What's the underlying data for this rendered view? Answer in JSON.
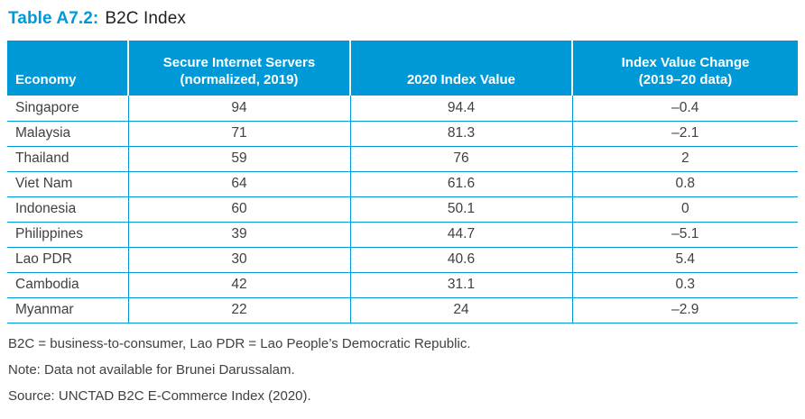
{
  "title": {
    "label": "Table A7.2:",
    "text": "B2C Index"
  },
  "colors": {
    "accent_cyan": "#0099d8",
    "header_text": "#ffffff",
    "body_text": "#414042",
    "title_text": "#231f20"
  },
  "table": {
    "columns": [
      "Economy",
      "Secure Internet Servers\n(normalized, 2019)",
      "2020 Index Value",
      "Index Value Change\n(2019–20 data)"
    ],
    "rows": [
      {
        "economy": "Singapore",
        "servers": "94",
        "index2020": "94.4",
        "change": "–0.4"
      },
      {
        "economy": "Malaysia",
        "servers": "71",
        "index2020": "81.3",
        "change": "–2.1"
      },
      {
        "economy": "Thailand",
        "servers": "59",
        "index2020": "76",
        "change": "2"
      },
      {
        "economy": "Viet Nam",
        "servers": "64",
        "index2020": "61.6",
        "change": "0.8"
      },
      {
        "economy": "Indonesia",
        "servers": "60",
        "index2020": "50.1",
        "change": "0"
      },
      {
        "economy": "Philippines",
        "servers": "39",
        "index2020": "44.7",
        "change": "–5.1"
      },
      {
        "economy": "Lao PDR",
        "servers": "30",
        "index2020": "40.6",
        "change": "5.4"
      },
      {
        "economy": "Cambodia",
        "servers": "42",
        "index2020": "31.1",
        "change": "0.3"
      },
      {
        "economy": "Myanmar",
        "servers": "22",
        "index2020": "24",
        "change": "–2.9"
      }
    ]
  },
  "footnotes": [
    "B2C = business-to-consumer, Lao PDR = Lao People’s Democratic Republic.",
    "Note: Data not available for Brunei Darussalam.",
    "Source: UNCTAD B2C E-Commerce Index (2020)."
  ],
  "chart_data": {
    "type": "table",
    "title": "Table A7.2: B2C Index",
    "columns": [
      "Economy",
      "Secure Internet Servers (normalized, 2019)",
      "2020 Index Value",
      "Index Value Change (2019–20 data)"
    ],
    "rows": [
      [
        "Singapore",
        94,
        94.4,
        -0.4
      ],
      [
        "Malaysia",
        71,
        81.3,
        -2.1
      ],
      [
        "Thailand",
        59,
        76,
        2
      ],
      [
        "Viet Nam",
        64,
        61.6,
        0.8
      ],
      [
        "Indonesia",
        60,
        50.1,
        0
      ],
      [
        "Philippines",
        39,
        44.7,
        -5.1
      ],
      [
        "Lao PDR",
        30,
        40.6,
        5.4
      ],
      [
        "Cambodia",
        42,
        31.1,
        0.3
      ],
      [
        "Myanmar",
        22,
        24,
        -2.9
      ]
    ]
  }
}
